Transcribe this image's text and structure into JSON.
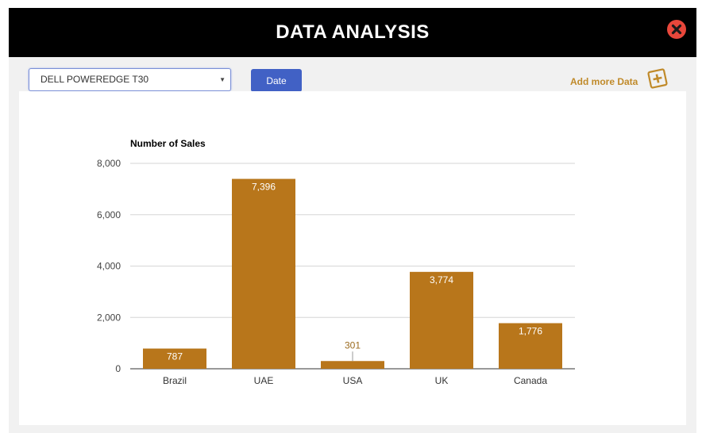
{
  "header": {
    "title": "DATA ANALYSIS"
  },
  "icons": {
    "close": "close-x-circle-icon",
    "add": "add-plus-square-icon"
  },
  "controls": {
    "product_select": {
      "selected": "DELL POWEREDGE T30"
    },
    "date_button": "Date",
    "add_more": "Add more Data"
  },
  "colors": {
    "bar": "#b8761b",
    "header_bg": "#000000",
    "date_button": "#4161c5",
    "close": "#e8473b",
    "add_more": "#c08a2a"
  },
  "chart_data": {
    "type": "bar",
    "ylabel": "Number of Sales",
    "categories": [
      "Brazil",
      "UAE",
      "USA",
      "UK",
      "Canada"
    ],
    "values": [
      787,
      7396,
      301,
      3774,
      1776
    ],
    "value_labels": [
      "787",
      "7,396",
      "301",
      "3,774",
      "1,776"
    ],
    "ylim": [
      0,
      8000
    ],
    "yticks": [
      0,
      2000,
      4000,
      6000,
      8000
    ],
    "ytick_labels": [
      "0",
      "2,000",
      "4,000",
      "6,000",
      "8,000"
    ],
    "grid": true,
    "legend": "none"
  }
}
